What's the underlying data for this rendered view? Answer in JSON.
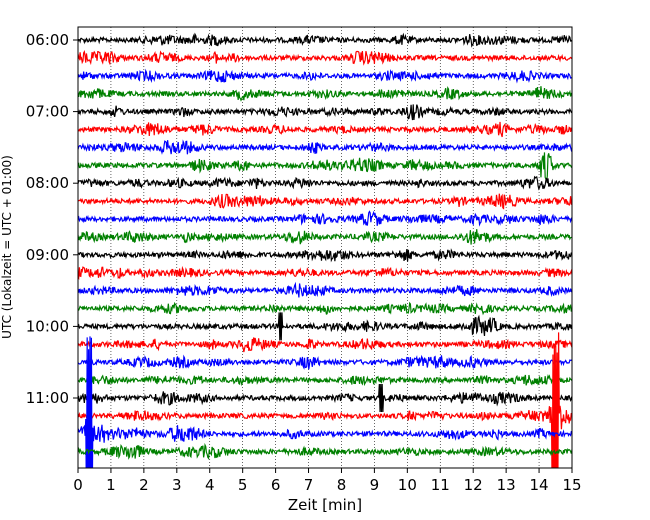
{
  "chart_data": {
    "type": "line",
    "title": "",
    "xlabel": "Zeit  [min]",
    "ylabel": "UTC (Lokalzeit = UTC + 01:00)",
    "xlim": [
      0,
      15
    ],
    "x_ticks": [
      0,
      1,
      2,
      3,
      4,
      5,
      6,
      7,
      8,
      9,
      10,
      11,
      12,
      13,
      14,
      15
    ],
    "y_ticks": [
      "06:00",
      "07:00",
      "08:00",
      "09:00",
      "10:00",
      "11:00"
    ],
    "grid": "vertical dotted",
    "legend": "none",
    "trace_interval_minutes": 15,
    "trace_colors": [
      "#000000",
      "#ff0000",
      "#0000ff",
      "#008000"
    ],
    "traces": [
      {
        "start": "06:00",
        "color": "#000000"
      },
      {
        "start": "06:15",
        "color": "#ff0000"
      },
      {
        "start": "06:30",
        "color": "#0000ff"
      },
      {
        "start": "06:45",
        "color": "#008000"
      },
      {
        "start": "07:00",
        "color": "#000000"
      },
      {
        "start": "07:15",
        "color": "#ff0000"
      },
      {
        "start": "07:30",
        "color": "#0000ff"
      },
      {
        "start": "07:45",
        "color": "#008000"
      },
      {
        "start": "08:00",
        "color": "#000000"
      },
      {
        "start": "08:15",
        "color": "#ff0000"
      },
      {
        "start": "08:30",
        "color": "#0000ff"
      },
      {
        "start": "08:45",
        "color": "#008000"
      },
      {
        "start": "09:00",
        "color": "#000000"
      },
      {
        "start": "09:15",
        "color": "#ff0000"
      },
      {
        "start": "09:30",
        "color": "#0000ff"
      },
      {
        "start": "09:45",
        "color": "#008000"
      },
      {
        "start": "10:00",
        "color": "#000000"
      },
      {
        "start": "10:15",
        "color": "#ff0000"
      },
      {
        "start": "10:30",
        "color": "#0000ff"
      },
      {
        "start": "10:45",
        "color": "#008000"
      },
      {
        "start": "11:00",
        "color": "#000000"
      },
      {
        "start": "11:15",
        "color": "#ff0000"
      },
      {
        "start": "11:30",
        "color": "#0000ff"
      },
      {
        "start": "11:45",
        "color": "#008000"
      }
    ],
    "events": [
      {
        "trace": "11:30",
        "minute": 0.35,
        "color": "#0000ff",
        "note": "large spike"
      },
      {
        "trace": "11:15",
        "minute": 14.5,
        "color": "#ff0000",
        "note": "large spike"
      },
      {
        "trace": "07:45",
        "minute": 14.2,
        "color": "#008000",
        "note": "burst"
      },
      {
        "trace": "11:00",
        "minute": 9.2,
        "color": "#000000",
        "note": "spike"
      },
      {
        "trace": "10:00",
        "minute": 6.15,
        "color": "#000000",
        "note": "spike"
      }
    ]
  }
}
